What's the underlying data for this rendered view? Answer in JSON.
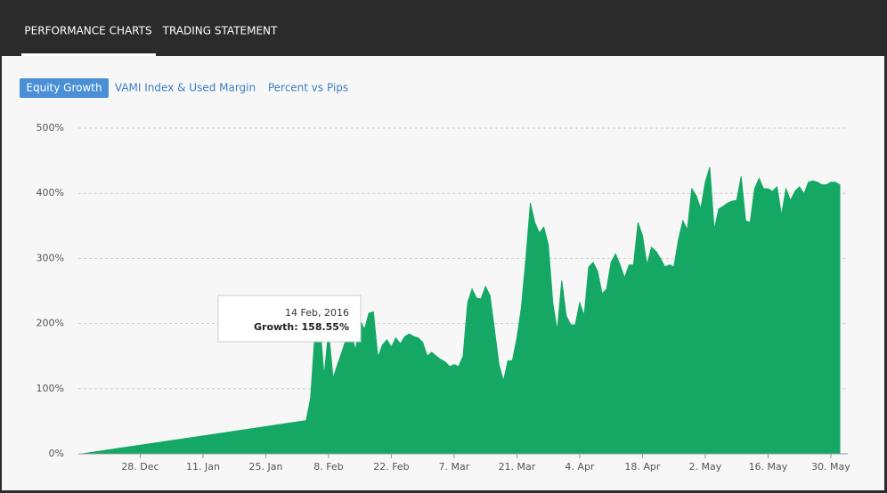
{
  "tabs": [
    "PERFORMANCE CHARTS",
    "TRADING STATEMENT"
  ],
  "buttons": [
    "Equity Growth",
    "VAMI Index & Used Margin",
    "Percent vs Pips"
  ],
  "chart_data": {
    "type": "area",
    "x": [
      "2015-12-15",
      "2016-02-03",
      "2016-02-04",
      "2016-02-05",
      "2016-02-06",
      "2016-02-07",
      "2016-02-08",
      "2016-02-09",
      "2016-02-10",
      "2016-02-11",
      "2016-02-12",
      "2016-02-13",
      "2016-02-14",
      "2016-02-15",
      "2016-02-16",
      "2016-02-17",
      "2016-02-18",
      "2016-02-19",
      "2016-02-20",
      "2016-02-21",
      "2016-02-22",
      "2016-02-23",
      "2016-02-24",
      "2016-02-25",
      "2016-02-26",
      "2016-02-27",
      "2016-02-28",
      "2016-02-29",
      "2016-03-01",
      "2016-03-02",
      "2016-03-03",
      "2016-03-04",
      "2016-03-05",
      "2016-03-06",
      "2016-03-07",
      "2016-03-08",
      "2016-03-09",
      "2016-03-10",
      "2016-03-11",
      "2016-03-12",
      "2016-03-13",
      "2016-03-14",
      "2016-03-15",
      "2016-03-16",
      "2016-03-17",
      "2016-03-18",
      "2016-03-19",
      "2016-03-20",
      "2016-03-21",
      "2016-03-22",
      "2016-03-23",
      "2016-03-24",
      "2016-03-25",
      "2016-03-26",
      "2016-03-27",
      "2016-03-28",
      "2016-03-29",
      "2016-03-30",
      "2016-03-31",
      "2016-04-01",
      "2016-04-02",
      "2016-04-03",
      "2016-04-04",
      "2016-04-05",
      "2016-04-06",
      "2016-04-07",
      "2016-04-08",
      "2016-04-09",
      "2016-04-10",
      "2016-04-11",
      "2016-04-12",
      "2016-04-13",
      "2016-04-14",
      "2016-04-15",
      "2016-04-16",
      "2016-04-17",
      "2016-04-18",
      "2016-04-19",
      "2016-04-20",
      "2016-04-21",
      "2016-04-22",
      "2016-04-23",
      "2016-04-24",
      "2016-04-25",
      "2016-04-26",
      "2016-04-27",
      "2016-04-28",
      "2016-04-29",
      "2016-04-30",
      "2016-05-01",
      "2016-05-02",
      "2016-05-03",
      "2016-05-04",
      "2016-05-05",
      "2016-05-06",
      "2016-05-07",
      "2016-05-08",
      "2016-05-09",
      "2016-05-10",
      "2016-05-11",
      "2016-05-12",
      "2016-05-13",
      "2016-05-14",
      "2016-05-15",
      "2016-05-16",
      "2016-05-17",
      "2016-05-18",
      "2016-05-19",
      "2016-05-20",
      "2016-05-21",
      "2016-05-22",
      "2016-05-23",
      "2016-05-24",
      "2016-05-25",
      "2016-05-26",
      "2016-05-27",
      "2016-05-28",
      "2016-05-29",
      "2016-05-30",
      "2016-05-31",
      "2016-06-01"
    ],
    "series": [
      {
        "name": "Growth:",
        "color": "#14a864",
        "values": [
          0,
          51,
          86,
          189,
          205,
          119,
          189,
          116,
          137,
          157,
          178,
          189,
          158.55,
          205,
          191,
          216,
          218,
          148,
          167,
          175,
          164,
          178,
          169,
          180,
          184,
          180,
          178,
          171,
          150,
          156,
          150,
          145,
          141,
          134,
          137,
          134,
          150,
          232,
          253,
          239,
          238,
          257,
          243,
          191,
          137,
          112,
          143,
          143,
          178,
          225,
          300,
          385,
          355,
          339,
          348,
          321,
          232,
          189,
          266,
          212,
          198,
          198,
          232,
          212,
          287,
          294,
          280,
          246,
          253,
          294,
          307,
          290,
          270,
          290,
          290,
          355,
          335,
          290,
          317,
          311,
          300,
          287,
          290,
          287,
          328,
          358,
          344,
          407,
          396,
          376,
          417,
          440,
          344,
          376,
          380,
          385,
          388,
          389,
          426,
          358,
          355,
          407,
          423,
          407,
          407,
          403,
          410,
          366,
          407,
          389,
          403,
          410,
          399,
          417,
          419,
          417,
          413,
          413,
          417,
          417,
          413
        ]
      }
    ],
    "xlim": [
      "2015-12-15",
      "2016-06-01"
    ],
    "xticks": [
      {
        "value": "2015-12-28",
        "label": "28. Dec"
      },
      {
        "value": "2016-01-11",
        "label": "11. Jan"
      },
      {
        "value": "2016-01-25",
        "label": "25. Jan"
      },
      {
        "value": "2016-02-08",
        "label": "8. Feb"
      },
      {
        "value": "2016-02-22",
        "label": "22. Feb"
      },
      {
        "value": "2016-03-07",
        "label": "7. Mar"
      },
      {
        "value": "2016-03-21",
        "label": "21. Mar"
      },
      {
        "value": "2016-04-04",
        "label": "4. Apr"
      },
      {
        "value": "2016-04-18",
        "label": "18. Apr"
      },
      {
        "value": "2016-05-02",
        "label": "2. May"
      },
      {
        "value": "2016-05-16",
        "label": "16. May"
      },
      {
        "value": "2016-05-30",
        "label": "30. May"
      }
    ],
    "ylim": [
      0,
      500
    ],
    "yticks": [
      {
        "value": 0,
        "label": "0%"
      },
      {
        "value": 100,
        "label": "100%"
      },
      {
        "value": 200,
        "label": "200%"
      },
      {
        "value": 300,
        "label": "300%"
      },
      {
        "value": 400,
        "label": "400%"
      },
      {
        "value": 500,
        "label": "500%"
      }
    ],
    "grid": true,
    "tooltip": {
      "title": "14 Feb, 2016",
      "value_label": "158.55%"
    }
  }
}
